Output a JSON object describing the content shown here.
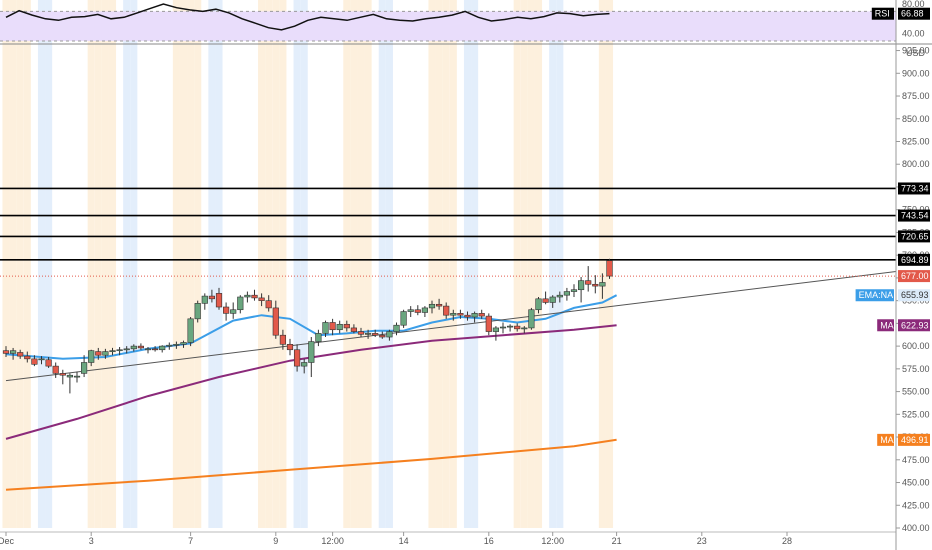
{
  "chart_data": {
    "type": "candlestick",
    "currency": "USD",
    "colors": {
      "up": "#6aa67f",
      "down": "#e2594a",
      "ema": "#3b9ee8",
      "ma_mid": "#8b2a7a",
      "ma_long": "#f5801f",
      "rsi_line": "#111111",
      "rsi_band": "#e9ddfb",
      "session_orange": "#fdf0dd",
      "session_blue": "#e3eefb",
      "current_price": "#e2594a"
    },
    "price_axis": {
      "ylim": [
        400,
        930
      ],
      "ticks": [
        "400.00",
        "425.00",
        "450.00",
        "475.00",
        "500.00",
        "525.00",
        "550.00",
        "575.00",
        "600.00",
        "625.00",
        "650.00",
        "675.00",
        "700.00",
        "725.00",
        "750.00",
        "775.00",
        "800.00",
        "825.00",
        "850.00",
        "875.00",
        "900.00",
        "925.00"
      ],
      "tick_values": [
        400,
        425,
        450,
        475,
        500,
        525,
        550,
        575,
        600,
        625,
        650,
        675,
        700,
        725,
        750,
        775,
        800,
        825,
        850,
        875,
        900,
        925
      ]
    },
    "time_axis": {
      "labels": [
        "Dec",
        "3",
        "7",
        "9",
        "12:00",
        "14",
        "16",
        "12:00",
        "21",
        "23",
        "28"
      ],
      "label_index": [
        0,
        12,
        26,
        38,
        46,
        56,
        68,
        77,
        86,
        98,
        110
      ],
      "x_max_index": 119
    },
    "horizontal_lines": [
      773.34,
      743.54,
      720.65,
      694.89
    ],
    "price_labels": [
      {
        "text": "773.34",
        "value": 773.34,
        "kind": "line"
      },
      {
        "text": "743.54",
        "value": 743.54,
        "kind": "line"
      },
      {
        "text": "720.65",
        "value": 720.65,
        "kind": "line"
      },
      {
        "text": "694.89",
        "value": 694.89,
        "kind": "line"
      },
      {
        "text": "677.00",
        "value": 677.0,
        "kind": "price"
      },
      {
        "name": "EMA:NA",
        "text": "655.93",
        "value": 655.93,
        "kind": "ema"
      },
      {
        "name": "MA",
        "text": "622.93",
        "value": 622.93,
        "kind": "ma_mid"
      },
      {
        "name": "MA",
        "text": "496.91",
        "value": 496.91,
        "kind": "ma_long"
      }
    ],
    "current_price": 677.0,
    "trendline": {
      "x": [
        0,
        119
      ],
      "y": [
        562,
        676
      ]
    },
    "candles": [
      {
        "o": 595,
        "h": 600,
        "l": 588,
        "c": 592
      },
      {
        "o": 592,
        "h": 598,
        "l": 585,
        "c": 595
      },
      {
        "o": 593,
        "h": 596,
        "l": 586,
        "c": 589
      },
      {
        "o": 589,
        "h": 594,
        "l": 582,
        "c": 586
      },
      {
        "o": 586,
        "h": 590,
        "l": 578,
        "c": 580
      },
      {
        "o": 585,
        "h": 589,
        "l": 580,
        "c": 586
      },
      {
        "o": 585,
        "h": 588,
        "l": 576,
        "c": 578
      },
      {
        "o": 578,
        "h": 582,
        "l": 565,
        "c": 570
      },
      {
        "o": 570,
        "h": 574,
        "l": 558,
        "c": 568
      },
      {
        "o": 566,
        "h": 570,
        "l": 548,
        "c": 568
      },
      {
        "o": 567,
        "h": 572,
        "l": 560,
        "c": 567
      },
      {
        "o": 570,
        "h": 590,
        "l": 566,
        "c": 582
      },
      {
        "o": 582,
        "h": 596,
        "l": 578,
        "c": 595
      },
      {
        "o": 594,
        "h": 598,
        "l": 585,
        "c": 590
      },
      {
        "o": 590,
        "h": 597,
        "l": 586,
        "c": 594
      },
      {
        "o": 594,
        "h": 598,
        "l": 590,
        "c": 595
      },
      {
        "o": 595,
        "h": 599,
        "l": 590,
        "c": 596
      },
      {
        "o": 596,
        "h": 600,
        "l": 592,
        "c": 597
      },
      {
        "o": 597,
        "h": 602,
        "l": 594,
        "c": 600
      },
      {
        "o": 600,
        "h": 603,
        "l": 596,
        "c": 598
      },
      {
        "o": 596,
        "h": 599,
        "l": 592,
        "c": 597
      },
      {
        "o": 597,
        "h": 600,
        "l": 594,
        "c": 596
      },
      {
        "o": 596,
        "h": 601,
        "l": 593,
        "c": 600
      },
      {
        "o": 600,
        "h": 604,
        "l": 596,
        "c": 601
      },
      {
        "o": 601,
        "h": 605,
        "l": 597,
        "c": 602
      },
      {
        "o": 602,
        "h": 606,
        "l": 598,
        "c": 604
      },
      {
        "o": 604,
        "h": 632,
        "l": 600,
        "c": 630
      },
      {
        "o": 630,
        "h": 650,
        "l": 626,
        "c": 647
      },
      {
        "o": 647,
        "h": 658,
        "l": 640,
        "c": 655
      },
      {
        "o": 655,
        "h": 662,
        "l": 648,
        "c": 652
      },
      {
        "o": 658,
        "h": 664,
        "l": 640,
        "c": 643
      },
      {
        "o": 643,
        "h": 648,
        "l": 628,
        "c": 636
      },
      {
        "o": 636,
        "h": 648,
        "l": 630,
        "c": 640
      },
      {
        "o": 640,
        "h": 656,
        "l": 636,
        "c": 654
      },
      {
        "o": 654,
        "h": 660,
        "l": 648,
        "c": 656
      },
      {
        "o": 656,
        "h": 662,
        "l": 650,
        "c": 653
      },
      {
        "o": 653,
        "h": 658,
        "l": 644,
        "c": 650
      },
      {
        "o": 650,
        "h": 656,
        "l": 638,
        "c": 642
      },
      {
        "o": 642,
        "h": 650,
        "l": 608,
        "c": 612
      },
      {
        "o": 612,
        "h": 618,
        "l": 596,
        "c": 602
      },
      {
        "o": 602,
        "h": 608,
        "l": 590,
        "c": 596
      },
      {
        "o": 596,
        "h": 602,
        "l": 572,
        "c": 578
      },
      {
        "o": 578,
        "h": 586,
        "l": 570,
        "c": 582
      },
      {
        "o": 582,
        "h": 610,
        "l": 566,
        "c": 605
      },
      {
        "o": 605,
        "h": 618,
        "l": 600,
        "c": 614
      },
      {
        "o": 614,
        "h": 628,
        "l": 610,
        "c": 626
      },
      {
        "o": 626,
        "h": 630,
        "l": 612,
        "c": 618
      },
      {
        "o": 618,
        "h": 628,
        "l": 614,
        "c": 624
      },
      {
        "o": 624,
        "h": 628,
        "l": 616,
        "c": 620
      },
      {
        "o": 620,
        "h": 624,
        "l": 614,
        "c": 616
      },
      {
        "o": 616,
        "h": 620,
        "l": 610,
        "c": 613
      },
      {
        "o": 613,
        "h": 618,
        "l": 608,
        "c": 614
      },
      {
        "o": 614,
        "h": 618,
        "l": 610,
        "c": 612
      },
      {
        "o": 612,
        "h": 616,
        "l": 608,
        "c": 610
      },
      {
        "o": 610,
        "h": 618,
        "l": 606,
        "c": 616
      },
      {
        "o": 616,
        "h": 626,
        "l": 612,
        "c": 623
      },
      {
        "o": 623,
        "h": 640,
        "l": 620,
        "c": 638
      },
      {
        "o": 638,
        "h": 644,
        "l": 632,
        "c": 640
      },
      {
        "o": 640,
        "h": 645,
        "l": 634,
        "c": 637
      },
      {
        "o": 637,
        "h": 644,
        "l": 632,
        "c": 642
      },
      {
        "o": 642,
        "h": 650,
        "l": 636,
        "c": 646
      },
      {
        "o": 646,
        "h": 652,
        "l": 640,
        "c": 644
      },
      {
        "o": 644,
        "h": 648,
        "l": 630,
        "c": 634
      },
      {
        "o": 634,
        "h": 640,
        "l": 628,
        "c": 636
      },
      {
        "o": 636,
        "h": 640,
        "l": 630,
        "c": 634
      },
      {
        "o": 634,
        "h": 638,
        "l": 628,
        "c": 632
      },
      {
        "o": 632,
        "h": 638,
        "l": 626,
        "c": 636
      },
      {
        "o": 636,
        "h": 640,
        "l": 630,
        "c": 633
      },
      {
        "o": 633,
        "h": 636,
        "l": 612,
        "c": 616
      },
      {
        "o": 616,
        "h": 622,
        "l": 606,
        "c": 620
      },
      {
        "o": 620,
        "h": 626,
        "l": 614,
        "c": 621
      },
      {
        "o": 621,
        "h": 624,
        "l": 616,
        "c": 622
      },
      {
        "o": 622,
        "h": 625,
        "l": 616,
        "c": 619
      },
      {
        "o": 619,
        "h": 622,
        "l": 614,
        "c": 620
      },
      {
        "o": 620,
        "h": 642,
        "l": 618,
        "c": 640
      },
      {
        "o": 640,
        "h": 654,
        "l": 636,
        "c": 652
      },
      {
        "o": 652,
        "h": 660,
        "l": 646,
        "c": 648
      },
      {
        "o": 648,
        "h": 656,
        "l": 642,
        "c": 654
      },
      {
        "o": 654,
        "h": 660,
        "l": 648,
        "c": 656
      },
      {
        "o": 656,
        "h": 664,
        "l": 650,
        "c": 660
      },
      {
        "o": 660,
        "h": 668,
        "l": 654,
        "c": 662
      },
      {
        "o": 662,
        "h": 676,
        "l": 648,
        "c": 672
      },
      {
        "o": 672,
        "h": 688,
        "l": 660,
        "c": 668
      },
      {
        "o": 668,
        "h": 678,
        "l": 658,
        "c": 666
      },
      {
        "o": 666,
        "h": 680,
        "l": 652,
        "c": 670
      },
      {
        "o": 694,
        "h": 696,
        "l": 674,
        "c": 677
      }
    ],
    "ema": {
      "x": [
        0,
        8,
        14,
        20,
        26,
        32,
        36,
        40,
        44,
        48,
        52,
        56,
        60,
        64,
        68,
        72,
        76,
        80,
        84,
        86
      ],
      "y": [
        591,
        586,
        588,
        597,
        603,
        628,
        634,
        630,
        612,
        614,
        617,
        617,
        626,
        632,
        630,
        626,
        630,
        642,
        648,
        656
      ]
    },
    "ma_mid": {
      "x": [
        0,
        10,
        20,
        30,
        40,
        50,
        60,
        70,
        80,
        86
      ],
      "y": [
        498,
        520,
        545,
        566,
        584,
        596,
        606,
        612,
        618,
        623
      ]
    },
    "ma_long": {
      "x": [
        0,
        20,
        40,
        60,
        80,
        86
      ],
      "y": [
        442,
        452,
        464,
        476,
        490,
        497
      ]
    }
  },
  "rsi": {
    "name": "RSI",
    "value": "66.88",
    "ylim": [
      30,
      80
    ],
    "band": [
      30,
      70
    ],
    "ticks": [
      "80.00",
      "40.00"
    ],
    "tick_values": [
      80,
      40
    ],
    "points": [
      62,
      71,
      65,
      60,
      58,
      62,
      63,
      66,
      60,
      62,
      68,
      74,
      80,
      75,
      72,
      70,
      73,
      68,
      60,
      54,
      48,
      45,
      50,
      58,
      62,
      60,
      58,
      62,
      66,
      60,
      58,
      57,
      60,
      62,
      65,
      70,
      62,
      57,
      59,
      62,
      60,
      63,
      68,
      67,
      64,
      66,
      67
    ]
  }
}
